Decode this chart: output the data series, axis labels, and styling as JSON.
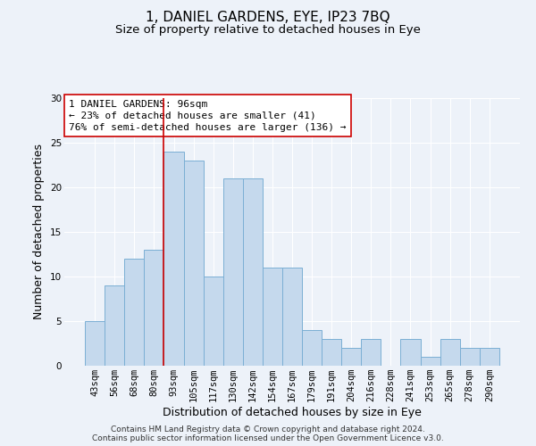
{
  "title": "1, DANIEL GARDENS, EYE, IP23 7BQ",
  "subtitle": "Size of property relative to detached houses in Eye",
  "xlabel": "Distribution of detached houses by size in Eye",
  "ylabel": "Number of detached properties",
  "categories": [
    "43sqm",
    "56sqm",
    "68sqm",
    "80sqm",
    "93sqm",
    "105sqm",
    "117sqm",
    "130sqm",
    "142sqm",
    "154sqm",
    "167sqm",
    "179sqm",
    "191sqm",
    "204sqm",
    "216sqm",
    "228sqm",
    "241sqm",
    "253sqm",
    "265sqm",
    "278sqm",
    "290sqm"
  ],
  "values": [
    5,
    9,
    12,
    13,
    24,
    23,
    10,
    21,
    21,
    11,
    11,
    4,
    3,
    2,
    3,
    0,
    3,
    1,
    3,
    2,
    2
  ],
  "bar_color": "#c5d9ed",
  "bar_edge_color": "#7bafd4",
  "bar_linewidth": 0.7,
  "vline_index": 4,
  "vline_color": "#cc0000",
  "ylim": [
    0,
    30
  ],
  "yticks": [
    0,
    5,
    10,
    15,
    20,
    25,
    30
  ],
  "annotation_text": "1 DANIEL GARDENS: 96sqm\n← 23% of detached houses are smaller (41)\n76% of semi-detached houses are larger (136) →",
  "annotation_box_color": "#ffffff",
  "annotation_box_edge": "#cc0000",
  "footer_line1": "Contains HM Land Registry data © Crown copyright and database right 2024.",
  "footer_line2": "Contains public sector information licensed under the Open Government Licence v3.0.",
  "background_color": "#edf2f9",
  "grid_color": "#ffffff",
  "title_fontsize": 11,
  "subtitle_fontsize": 9.5,
  "axis_label_fontsize": 9,
  "tick_fontsize": 7.5,
  "annotation_fontsize": 8,
  "footer_fontsize": 6.5
}
